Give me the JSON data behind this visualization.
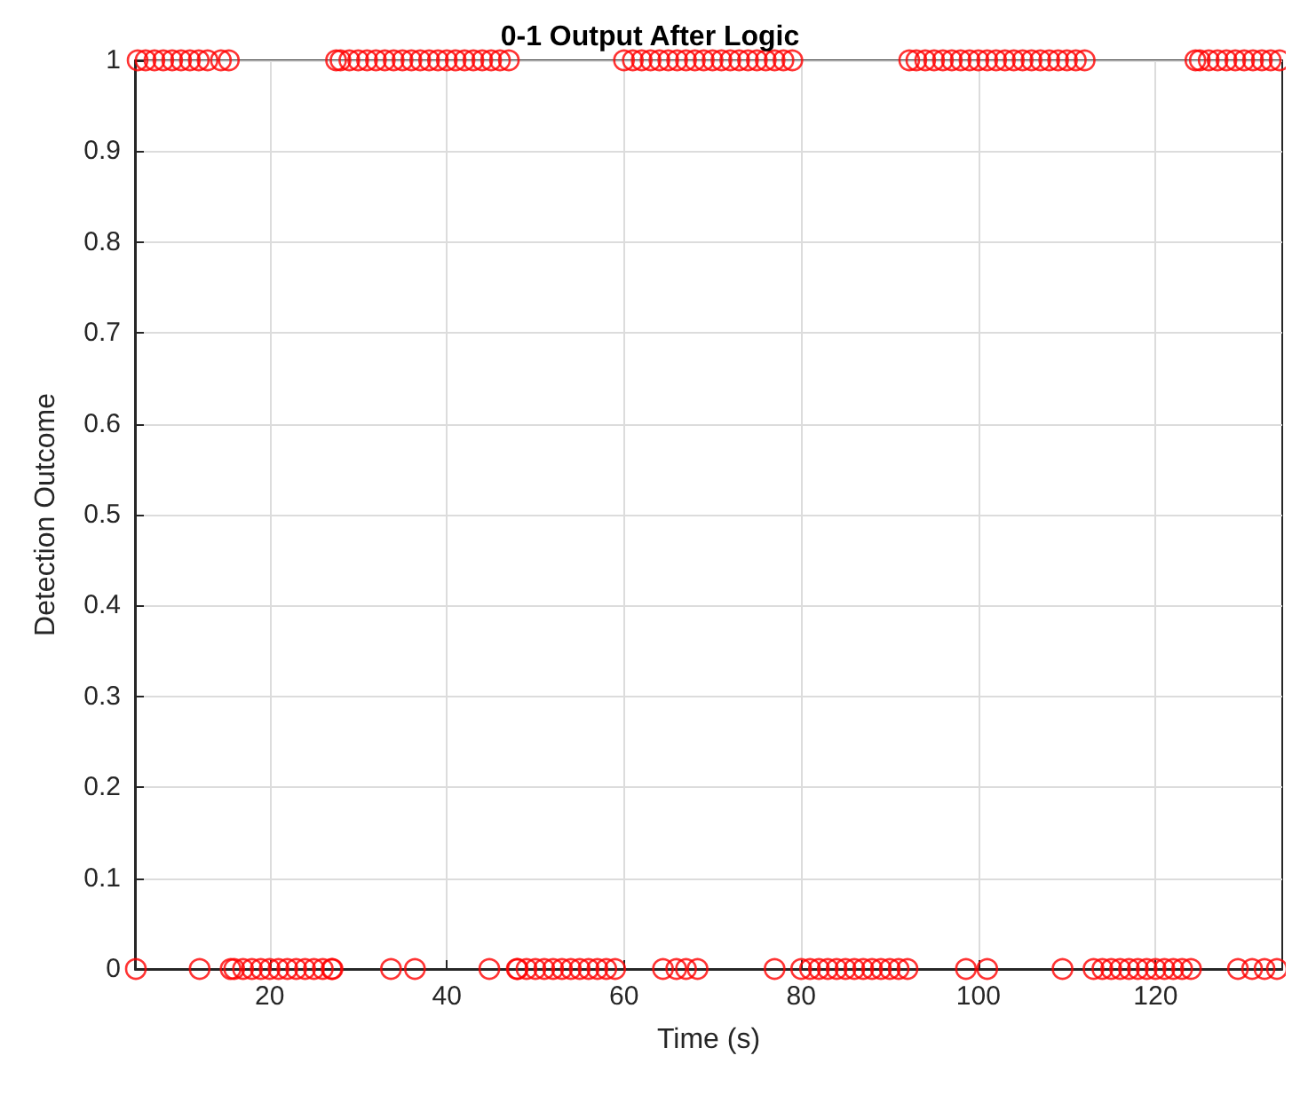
{
  "chart_data": {
    "type": "scatter",
    "title": "0-1 Output After Logic",
    "xlabel": "Time (s)",
    "ylabel": "Detection Outcome",
    "x": [
      4.9,
      5.1,
      6,
      7,
      8,
      9,
      10,
      11,
      12,
      12.1,
      13,
      14.5,
      15.4,
      15.6,
      16,
      17,
      18,
      19,
      20,
      21,
      22,
      23,
      24,
      25,
      26,
      27,
      27.1,
      27.5,
      28,
      29,
      30,
      31,
      32,
      33,
      33.7,
      34,
      35,
      36,
      36.4,
      37,
      38,
      39,
      40,
      41,
      42,
      43,
      44,
      44.8,
      45,
      46,
      47,
      47.9,
      48,
      49,
      50,
      51,
      52,
      53,
      54,
      55,
      56,
      57,
      58,
      59,
      60,
      61,
      62,
      63,
      64,
      64.4,
      65,
      65.9,
      66,
      67,
      67,
      68,
      68.3,
      69,
      70,
      71,
      72,
      73,
      74,
      75,
      76,
      77,
      77,
      78,
      79,
      80,
      81,
      82,
      83,
      84,
      85,
      86,
      87,
      88,
      89,
      90,
      91,
      92,
      92.2,
      93,
      94,
      95,
      96,
      97,
      98,
      98.6,
      99,
      100,
      101,
      101,
      102,
      103,
      104,
      105,
      106,
      107,
      108,
      109,
      109.5,
      110,
      111,
      112,
      113,
      114,
      115,
      116,
      117,
      118,
      119,
      120,
      121,
      122,
      123,
      124,
      124.5,
      125,
      126,
      127,
      128,
      129,
      129.3,
      130,
      130.9,
      131,
      132,
      132.3,
      133,
      133.7,
      134
    ],
    "values": [
      0,
      1,
      1,
      1,
      1,
      1,
      1,
      1,
      1,
      0,
      1,
      1,
      1,
      0,
      0,
      0,
      0,
      0,
      0,
      0,
      0,
      0,
      0,
      0,
      0,
      0,
      0,
      1,
      1,
      1,
      1,
      1,
      1,
      1,
      0,
      1,
      1,
      1,
      0,
      1,
      1,
      1,
      1,
      1,
      1,
      1,
      1,
      0,
      1,
      1,
      1,
      0,
      0,
      0,
      0,
      0,
      0,
      0,
      0,
      0,
      0,
      0,
      0,
      0,
      1,
      1,
      1,
      1,
      1,
      0,
      1,
      0,
      1,
      1,
      0,
      1,
      0,
      1,
      1,
      1,
      1,
      1,
      1,
      1,
      1,
      1,
      0,
      1,
      1,
      0,
      0,
      0,
      0,
      0,
      0,
      0,
      0,
      0,
      0,
      0,
      0,
      0,
      1,
      1,
      1,
      1,
      1,
      1,
      1,
      0,
      1,
      1,
      1,
      0,
      1,
      1,
      1,
      1,
      1,
      1,
      1,
      1,
      0,
      1,
      1,
      1,
      0,
      0,
      0,
      0,
      0,
      0,
      0,
      0,
      0,
      0,
      0,
      0,
      1,
      1,
      1,
      1,
      1,
      1,
      0,
      1,
      0,
      1,
      1,
      0,
      1,
      0,
      1
    ],
    "color": "#ff0000",
    "marker": "circle",
    "grid": true,
    "xlim": [
      4.8,
      134.3
    ],
    "xticks": [
      20,
      40,
      60,
      80,
      100,
      120
    ],
    "ylim": [
      0,
      1
    ],
    "yticks": [
      0,
      0.1,
      0.2,
      0.3,
      0.4,
      0.5,
      0.6,
      0.7,
      0.8,
      0.9,
      1
    ]
  }
}
